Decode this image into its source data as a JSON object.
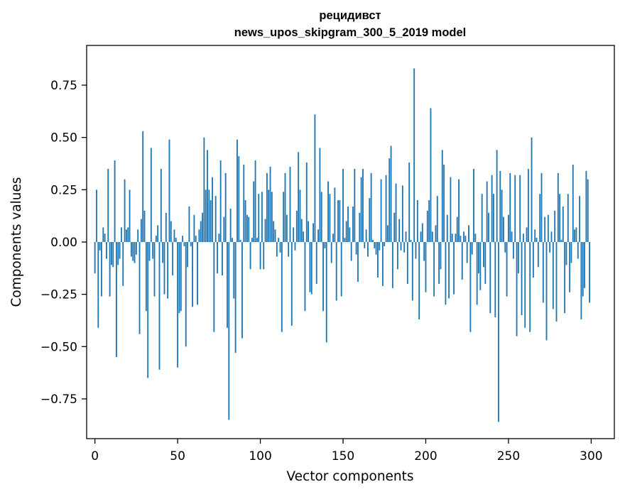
{
  "chart_data": {
    "type": "bar",
    "title_line1": "рецидивст",
    "title_line2": "news_upos_skipgram_300_5_2019 model",
    "xlabel": "Vector components",
    "ylabel": "Components values",
    "xlim": [
      -5,
      314
    ],
    "ylim": [
      -0.94,
      0.94
    ],
    "xticks": [
      0,
      50,
      100,
      150,
      200,
      250,
      300
    ],
    "xtick_labels": [
      "0",
      "50",
      "100",
      "150",
      "200",
      "250",
      "300"
    ],
    "yticks": [
      -0.75,
      -0.5,
      -0.25,
      0.0,
      0.25,
      0.5,
      0.75
    ],
    "ytick_labels": [
      "−0.75",
      "−0.50",
      "−0.25",
      "0.00",
      "0.25",
      "0.50",
      "0.75"
    ],
    "bar_color": "#1f77b4",
    "values": [
      -0.15,
      0.25,
      -0.41,
      -0.04,
      -0.26,
      0.07,
      0.04,
      -0.08,
      0.35,
      -0.26,
      -0.11,
      -0.12,
      0.39,
      -0.55,
      -0.11,
      -0.08,
      0.07,
      -0.21,
      0.3,
      0.06,
      0.07,
      0.25,
      -0.07,
      -0.09,
      -0.1,
      -0.06,
      0.06,
      -0.44,
      0.11,
      0.53,
      0.15,
      -0.33,
      -0.65,
      -0.09,
      0.45,
      -0.08,
      -0.26,
      0.03,
      0.08,
      -0.61,
      0.35,
      -0.1,
      -0.25,
      0.14,
      -0.27,
      0.49,
      0.1,
      -0.16,
      0.06,
      0.02,
      -0.6,
      -0.34,
      -0.33,
      0.03,
      -0.02,
      -0.5,
      -0.12,
      0.17,
      -0.02,
      -0.31,
      0.13,
      0.03,
      -0.3,
      0.06,
      0.1,
      0.14,
      0.5,
      0.25,
      0.44,
      0.25,
      0.2,
      0.31,
      -0.43,
      0.22,
      -0.15,
      0.04,
      0.39,
      -0.16,
      0.12,
      0.33,
      -0.41,
      -0.85,
      0.16,
      0.02,
      -0.27,
      -0.53,
      0.49,
      0.41,
      0.01,
      -0.46,
      0.37,
      0.2,
      0.13,
      0.12,
      -0.13,
      0.02,
      0.29,
      0.39,
      0.02,
      0.23,
      -0.13,
      0.24,
      -0.13,
      0.11,
      0.33,
      0.25,
      0.36,
      0.24,
      0.1,
      0.06,
      -0.07,
      0.02,
      -0.05,
      -0.43,
      0.24,
      0.33,
      0.13,
      -0.07,
      0.36,
      -0.4,
      0.07,
      -0.04,
      0.15,
      0.43,
      0.25,
      0.11,
      0.05,
      -0.33,
      0.38,
      0.1,
      -0.24,
      -0.25,
      0.09,
      0.61,
      -0.2,
      0.06,
      0.45,
      0.24,
      -0.33,
      -0.03,
      -0.48,
      0.29,
      0.23,
      -0.1,
      0.04,
      0.26,
      -0.28,
      0.2,
      0.2,
      -0.26,
      0.35,
      0.02,
      0.1,
      0.17,
      0.07,
      -0.09,
      0.17,
      0.35,
      -0.06,
      -0.19,
      0.14,
      0.31,
      0.35,
      -0.03,
      0.06,
      -0.07,
      0.21,
      0.33,
      0.01,
      -0.03,
      -0.06,
      -0.17,
      -0.04,
      0.3,
      -0.21,
      -0.02,
      0.32,
      0.08,
      0.4,
      0.46,
      -0.22,
      0.14,
      0.28,
      -0.13,
      0.11,
      -0.04,
      0.27,
      -0.05,
      0.05,
      -0.2,
      0.38,
      0.01,
      -0.28,
      0.83,
      -0.08,
      0.2,
      -0.37,
      0.05,
      0.09,
      -0.09,
      -0.24,
      0.15,
      0.2,
      0.64,
      0.05,
      -0.26,
      0.08,
      0.22,
      -0.2,
      -0.13,
      0.44,
      0.37,
      -0.3,
      0.13,
      -0.27,
      0.31,
      0.04,
      -0.25,
      0.04,
      0.12,
      0.3,
      0.03,
      -0.18,
      0.05,
      0.03,
      -0.1,
      0.08,
      -0.43,
      -0.06,
      0.35,
      0.04,
      -0.3,
      -0.15,
      -0.23,
      0.23,
      -0.12,
      -0.2,
      0.29,
      0.14,
      -0.34,
      0.32,
      0.23,
      -0.36,
      0.44,
      -0.86,
      0.34,
      0.25,
      0.12,
      -0.05,
      -0.26,
      0.13,
      0.33,
      0.05,
      -0.08,
      0.32,
      -0.45,
      -0.15,
      0.32,
      -0.35,
      0.04,
      -0.41,
      0.07,
      0.35,
      -0.43,
      0.5,
      -0.17,
      0.06,
      0.02,
      -0.12,
      0.23,
      0.33,
      -0.29,
      0.12,
      -0.47,
      0.13,
      -0.05,
      0.05,
      -0.32,
      0.15,
      -0.38,
      0.33,
      0.23,
      0.01,
      0.17,
      -0.34,
      -0.11,
      0.23,
      -0.24,
      -0.1,
      0.37,
      0.06,
      0.07,
      -0.08,
      0.22,
      -0.37,
      -0.26,
      -0.22,
      0.34,
      0.3,
      -0.29
    ]
  }
}
